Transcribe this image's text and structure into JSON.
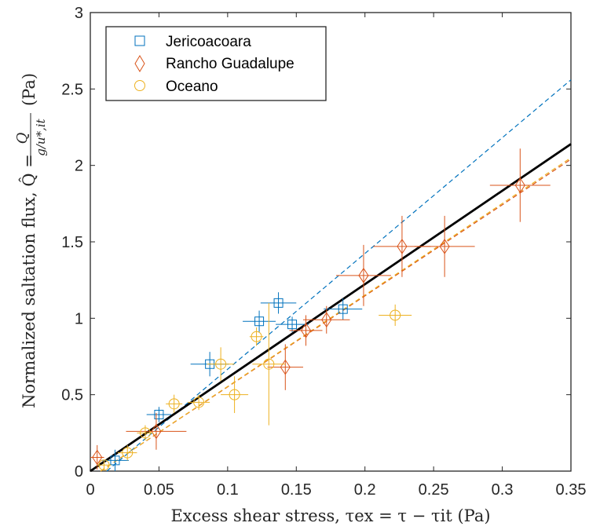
{
  "chart_data": {
    "type": "scatter",
    "title": "",
    "xlabel": "Excess shear stress, τex = τ − τit (Pa)",
    "ylabel_prefix": "Normalized saltation flux, Q̂ =",
    "ylabel_numerator": "Q",
    "ylabel_denominator": "g/u*,it",
    "ylabel_unit": "(Pa)",
    "xlim": [
      0,
      0.35
    ],
    "ylim": [
      0,
      3
    ],
    "xticks": [
      0,
      0.05,
      0.1,
      0.15,
      0.2,
      0.25,
      0.3,
      0.35
    ],
    "xtick_labels": [
      "0",
      "0.05",
      "0.1",
      "0.15",
      "0.2",
      "0.25",
      "0.3",
      "0.35"
    ],
    "yticks": [
      0,
      0.5,
      1,
      1.5,
      2,
      2.5,
      3
    ],
    "ytick_labels": [
      "0",
      "0.5",
      "1",
      "1.5",
      "2",
      "2.5",
      "3"
    ],
    "grid": false,
    "legend_position": "top-left",
    "series": [
      {
        "name": "Jericoacoara",
        "marker": "square",
        "color": "#0072BD",
        "points": [
          {
            "x": 0.018,
            "y": 0.07,
            "xerr": 0.01,
            "yerr": 0.07
          },
          {
            "x": 0.05,
            "y": 0.37,
            "xerr": 0.009,
            "yerr": 0.05
          },
          {
            "x": 0.087,
            "y": 0.7,
            "xerr": 0.014,
            "yerr": 0.08
          },
          {
            "x": 0.123,
            "y": 0.98,
            "xerr": 0.012,
            "yerr": 0.07
          },
          {
            "x": 0.137,
            "y": 1.1,
            "xerr": 0.013,
            "yerr": 0.07
          },
          {
            "x": 0.147,
            "y": 0.96,
            "xerr": 0.012,
            "yerr": 0.05
          },
          {
            "x": 0.184,
            "y": 1.06,
            "xerr": 0.014,
            "yerr": 0.07
          }
        ],
        "fit_line": {
          "x": [
            0.012,
            0.35
          ],
          "y": [
            0.0,
            2.56
          ],
          "style": "dashed"
        }
      },
      {
        "name": "Rancho Guadalupe",
        "marker": "diamond",
        "color": "#D95319",
        "points": [
          {
            "x": 0.005,
            "y": 0.09,
            "xerr": 0.005,
            "yerr": 0.08
          },
          {
            "x": 0.048,
            "y": 0.26,
            "xerr": 0.022,
            "yerr": 0.12
          },
          {
            "x": 0.142,
            "y": 0.68,
            "xerr": 0.013,
            "yerr": 0.15
          },
          {
            "x": 0.157,
            "y": 0.92,
            "xerr": 0.012,
            "yerr": 0.1
          },
          {
            "x": 0.172,
            "y": 0.99,
            "xerr": 0.017,
            "yerr": 0.09
          },
          {
            "x": 0.199,
            "y": 1.28,
            "xerr": 0.02,
            "yerr": 0.2
          },
          {
            "x": 0.227,
            "y": 1.47,
            "xerr": 0.021,
            "yerr": 0.2
          },
          {
            "x": 0.258,
            "y": 1.47,
            "xerr": 0.022,
            "yerr": 0.2
          },
          {
            "x": 0.313,
            "y": 1.87,
            "xerr": 0.022,
            "yerr": 0.24
          }
        ],
        "fit_line": {
          "x": [
            0.0075,
            0.35
          ],
          "y": [
            0.0,
            2.04
          ],
          "style": "dashed"
        }
      },
      {
        "name": "Oceano",
        "marker": "circle",
        "color": "#EDB120",
        "points": [
          {
            "x": 0.01,
            "y": 0.04,
            "xerr": 0.005,
            "yerr": 0.03
          },
          {
            "x": 0.027,
            "y": 0.12,
            "xerr": 0.007,
            "yerr": 0.05
          },
          {
            "x": 0.04,
            "y": 0.25,
            "xerr": 0.006,
            "yerr": 0.05
          },
          {
            "x": 0.061,
            "y": 0.44,
            "xerr": 0.006,
            "yerr": 0.06
          },
          {
            "x": 0.079,
            "y": 0.45,
            "xerr": 0.008,
            "yerr": 0.05
          },
          {
            "x": 0.095,
            "y": 0.7,
            "xerr": 0.01,
            "yerr": 0.11
          },
          {
            "x": 0.105,
            "y": 0.5,
            "xerr": 0.01,
            "yerr": 0.12
          },
          {
            "x": 0.121,
            "y": 0.88,
            "xerr": 0.005,
            "yerr": 0.06
          },
          {
            "x": 0.13,
            "y": 0.7,
            "xerr": 0.012,
            "yerr": 0.4
          },
          {
            "x": 0.222,
            "y": 1.02,
            "xerr": 0.012,
            "yerr": 0.07
          }
        ],
        "fit_line": {
          "x": [
            0.0075,
            0.35
          ],
          "y": [
            0.0,
            2.05
          ],
          "style": "dashed"
        }
      }
    ],
    "overall_fit": {
      "x": [
        0,
        0.35
      ],
      "y": [
        0.0,
        2.14
      ],
      "color": "#000000",
      "style": "solid"
    }
  }
}
